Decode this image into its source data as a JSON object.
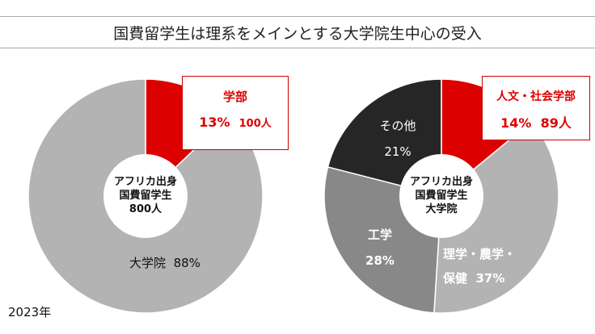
{
  "title": "国費留学生は理系をメインとする大学院生中心の受入",
  "year": "2023年",
  "colors": {
    "red": "#dd0000",
    "light_gray": "#b3b3b3",
    "mid_gray": "#888888",
    "dark": "#262626"
  },
  "chart_data": [
    {
      "type": "pie",
      "donut": true,
      "center_label": [
        "アフリカ出身",
        "国費留学生",
        "800人"
      ],
      "categories": [
        "学部",
        "大学院"
      ],
      "values": [
        13,
        88
      ],
      "labels": [
        {
          "name": "学部",
          "pct": "13%",
          "count": "100人"
        },
        {
          "name": "大学院",
          "pct": "88%"
        }
      ],
      "colors": [
        "#dd0000",
        "#b3b3b3"
      ]
    },
    {
      "type": "pie",
      "donut": true,
      "center_label": [
        "アフリカ出身",
        "国費留学生",
        "大学院"
      ],
      "categories": [
        "人文・社会学部",
        "理学・農学・保健",
        "工学",
        "その他"
      ],
      "values": [
        14,
        37,
        28,
        21
      ],
      "labels": [
        {
          "name": "人文・社会学部",
          "pct": "14%",
          "count": "89人"
        },
        {
          "name": "理学・農学・",
          "name2": "保健",
          "pct": "37%"
        },
        {
          "name": "工学",
          "pct": "28%"
        },
        {
          "name": "その他",
          "pct": "21%"
        }
      ],
      "colors": [
        "#dd0000",
        "#b3b3b3",
        "#888888",
        "#262626"
      ]
    }
  ]
}
